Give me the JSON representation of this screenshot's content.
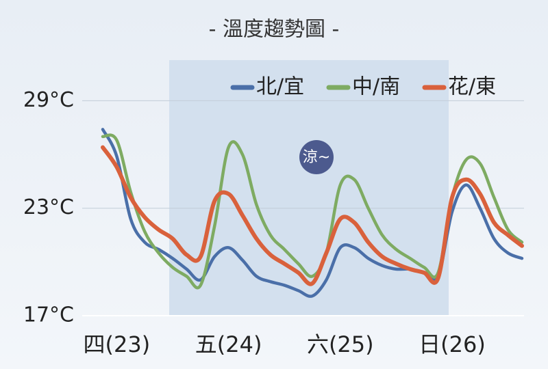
{
  "chart_data": {
    "type": "line",
    "title": "- 溫度趨勢圖 -",
    "categories": [
      null,
      "四(23)",
      null,
      null,
      null,
      null,
      null,
      null,
      null,
      "五(24)",
      null,
      null,
      null,
      null,
      null,
      null,
      null,
      "六(25)",
      null,
      null,
      null,
      null,
      null,
      null,
      null,
      "日(26)",
      null,
      null,
      null,
      null,
      null
    ],
    "series": [
      {
        "name": "北/宜",
        "color": "#4a6fa8",
        "values": [
          27.4,
          25.9,
          22.4,
          21.1,
          20.7,
          20.2,
          19.6,
          19.0,
          20.3,
          20.8,
          20.1,
          19.2,
          18.9,
          18.7,
          18.4,
          18.1,
          19.0,
          20.8,
          20.8,
          20.2,
          19.8,
          19.6,
          19.6,
          19.4,
          19.2,
          22.8,
          24.3,
          23.0,
          21.3,
          20.5,
          20.2
        ]
      },
      {
        "name": "中/南",
        "color": "#7eab62",
        "values": [
          27.0,
          26.8,
          23.9,
          21.7,
          20.5,
          19.7,
          19.2,
          18.7,
          22.0,
          26.4,
          26.0,
          23.2,
          21.5,
          20.7,
          19.9,
          19.2,
          20.5,
          24.3,
          24.6,
          23.0,
          21.5,
          20.7,
          20.2,
          19.7,
          19.4,
          23.6,
          25.7,
          25.5,
          23.6,
          21.8,
          21.1
        ]
      },
      {
        "name": "花/東",
        "color": "#d9613c",
        "values": [
          26.4,
          25.3,
          23.6,
          22.5,
          21.8,
          21.3,
          20.4,
          20.3,
          23.4,
          23.8,
          22.6,
          21.3,
          20.4,
          19.9,
          19.4,
          18.8,
          20.5,
          22.4,
          22.2,
          21.1,
          20.3,
          19.9,
          19.6,
          19.4,
          19.1,
          23.6,
          24.6,
          23.8,
          22.2,
          21.5,
          20.9
        ]
      }
    ],
    "ylim": [
      17,
      31
    ],
    "yticks": [
      {
        "value": 17,
        "label": "17°C"
      },
      {
        "value": 23,
        "label": "23°C"
      },
      {
        "value": 29,
        "label": "29°C"
      }
    ],
    "grid": true,
    "legend": "top-right",
    "annotation": "涼~"
  }
}
